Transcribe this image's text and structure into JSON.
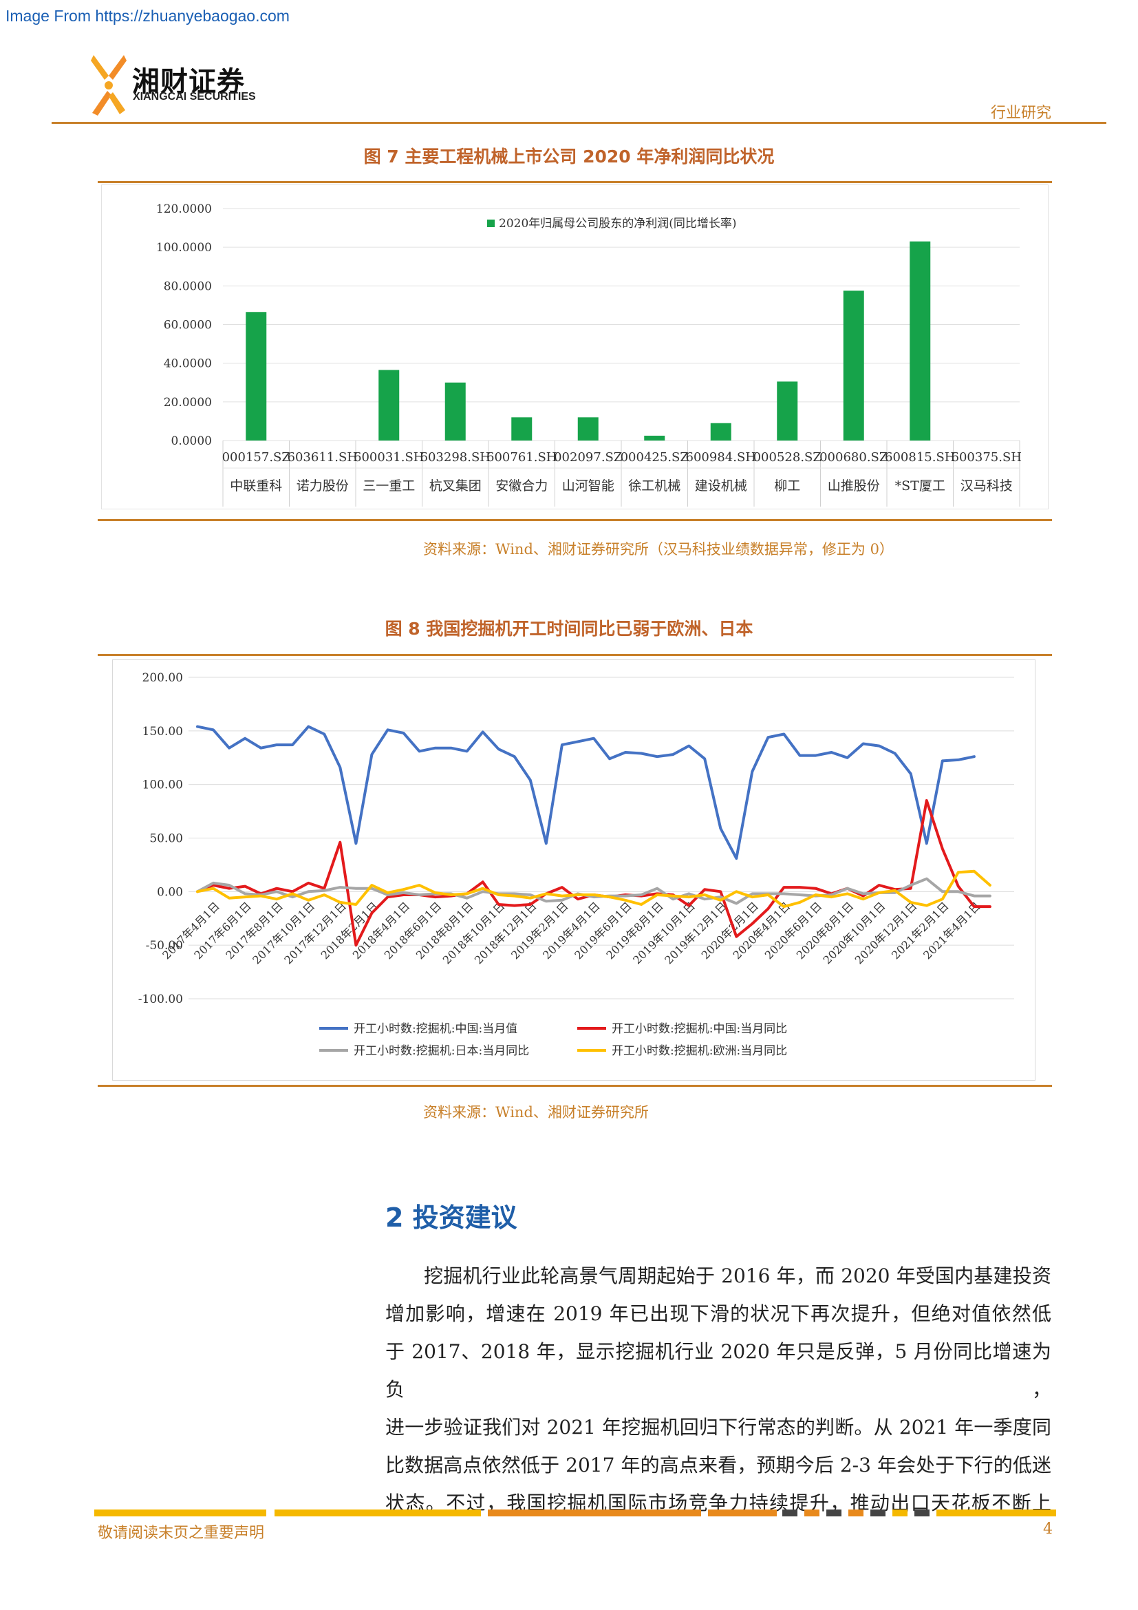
{
  "source_url": "Image From https://zhuanyebaogao.com",
  "brand": {
    "name_cn": "湘财证券",
    "name_en": "XIANGCAI SECURITIES"
  },
  "header": {
    "tag": "行业研究"
  },
  "colors": {
    "accent": "#c8802a",
    "bar": "#16a34a",
    "china_value": "#4472c4",
    "china_yoy": "#e31a1c",
    "japan_yoy": "#a6a6a6",
    "europe_yoy": "#ffc000",
    "heading": "#1f5ea8"
  },
  "figure7": {
    "title": "图 7 主要工程机械上市公司 2020 年净利润同比状况",
    "source": "资料来源：Wind、湘财证券研究所（汉马科技业绩数据异常，修正为 0）",
    "chart_data": {
      "type": "bar",
      "legend": "2020年归属母公司股东的净利润(同比增长率)",
      "legend_placement": "top",
      "grid": true,
      "ylim": [
        0,
        120
      ],
      "yticks": [
        "0.0000",
        "20.0000",
        "40.0000",
        "60.0000",
        "80.0000",
        "100.0000",
        "120.0000"
      ],
      "codes": [
        "000157.SZ",
        "603611.SH",
        "600031.SH",
        "603298.SH",
        "600761.SH",
        "002097.SZ",
        "000425.SZ",
        "600984.SH",
        "000528.SZ",
        "000680.SZ",
        "600815.SH",
        "600375.SH"
      ],
      "categories": [
        "中联重科",
        "诺力股份",
        "三一重工",
        "杭叉集团",
        "安徽合力",
        "山河智能",
        "徐工机械",
        "建设机械",
        "柳工",
        "山推股份",
        "*ST厦工",
        "汉马科技"
      ],
      "values": [
        66.5,
        0,
        36.5,
        30,
        12,
        12,
        2.5,
        9,
        30.5,
        77.5,
        103,
        0
      ]
    }
  },
  "figure8": {
    "title": "图 8 我国挖掘机开工时间同比已弱于欧洲、日本",
    "source": "资料来源：Wind、湘财证券研究所",
    "chart_data": {
      "type": "line",
      "ylim": [
        -100,
        200
      ],
      "yticks": [
        "-100.00",
        "-50.00",
        "0.00",
        "50.00",
        "100.00",
        "150.00",
        "200.00"
      ],
      "grid": true,
      "legend_placement": "bottom",
      "x": [
        "2017-03",
        "2017-04",
        "2017-05",
        "2017-06",
        "2017-07",
        "2017-08",
        "2017-09",
        "2017-10",
        "2017-11",
        "2017-12",
        "2018-01",
        "2018-02",
        "2018-03",
        "2018-04",
        "2018-05",
        "2018-06",
        "2018-07",
        "2018-08",
        "2018-09",
        "2018-10",
        "2018-11",
        "2018-12",
        "2019-01",
        "2019-02",
        "2019-03",
        "2019-04",
        "2019-05",
        "2019-06",
        "2019-07",
        "2019-08",
        "2019-09",
        "2019-10",
        "2019-11",
        "2019-12",
        "2020-01",
        "2020-02",
        "2020-03",
        "2020-04",
        "2020-05",
        "2020-06",
        "2020-07",
        "2020-08",
        "2020-09",
        "2020-10",
        "2020-11",
        "2020-12",
        "2021-01",
        "2021-02",
        "2021-03",
        "2021-04",
        "2021-05",
        "2021-06"
      ],
      "xtick_labels": [
        "2017年4月1日",
        "2017年6月1日",
        "2017年8月1日",
        "2017年10月1日",
        "2017年12月1日",
        "2018年2月1日",
        "2018年4月1日",
        "2018年6月1日",
        "2018年8月1日",
        "2018年10月1日",
        "2018年12月1日",
        "2019年2月1日",
        "2019年4月1日",
        "2019年6月1日",
        "2019年8月1日",
        "2019年10月1日",
        "2019年12月1日",
        "2020年2月1日",
        "2020年4月1日",
        "2020年6月1日",
        "2020年8月1日",
        "2020年10月1日",
        "2020年12月1日",
        "2021年2月1日",
        "2021年4月1日"
      ],
      "series": [
        {
          "name": "开工小时数:挖掘机:中国:当月值",
          "color": "#4472c4",
          "values": [
            154,
            151,
            134,
            143,
            134,
            137,
            137,
            154,
            147,
            116,
            45,
            128,
            151,
            148,
            131,
            134,
            134,
            131,
            149,
            133,
            126,
            104,
            45,
            137,
            140,
            143,
            124,
            130,
            129,
            126,
            128,
            136,
            124,
            59,
            31,
            112,
            144,
            147,
            127,
            127,
            130,
            125,
            138,
            136,
            129,
            110,
            45,
            122,
            123,
            126,
            null,
            null
          ]
        },
        {
          "name": "开工小时数:挖掘机:中国:当月同比",
          "color": "#e31a1c",
          "values": [
            0,
            6,
            3,
            5,
            -2,
            3,
            0,
            8,
            3,
            46,
            -50,
            -20,
            -5,
            -3,
            -3,
            -5,
            -4,
            -2,
            9,
            -12,
            -13,
            -12,
            -2,
            4,
            -7,
            -3,
            -5,
            -3,
            -4,
            -2,
            -3,
            -13,
            2,
            0,
            -42,
            -30,
            -16,
            4,
            4,
            3,
            -2,
            3,
            -4,
            6,
            2,
            3,
            85,
            40,
            5,
            -14,
            -14,
            null
          ]
        },
        {
          "name": "开工小时数:挖掘机:日本:当月同比",
          "color": "#a6a6a6",
          "values": [
            0,
            8,
            6,
            -2,
            -3,
            0,
            -5,
            0,
            1,
            4,
            3,
            3,
            -3,
            -1,
            -3,
            -2,
            -2,
            -6,
            0,
            -2,
            -2,
            -3,
            -9,
            -8,
            -2,
            -5,
            -4,
            -4,
            -3,
            3,
            -7,
            -2,
            -7,
            -5,
            -11,
            -2,
            -2,
            -2,
            -3,
            -4,
            -3,
            3,
            -2,
            -1,
            -1,
            6,
            12,
            0,
            0,
            -4,
            -4,
            null
          ]
        },
        {
          "name": "开工小时数:挖掘机:欧洲:当月同比",
          "color": "#ffc000",
          "values": [
            0,
            3,
            -6,
            -5,
            -4,
            -7,
            -2,
            -8,
            -3,
            -10,
            -12,
            6,
            -1,
            2,
            6,
            -1,
            -3,
            -2,
            3,
            -3,
            -4,
            -6,
            -2,
            -4,
            -3,
            -3,
            -5,
            -8,
            -12,
            -3,
            -4,
            -5,
            -3,
            -8,
            0,
            -5,
            -3,
            -14,
            -10,
            -3,
            -5,
            -2,
            -7,
            -1,
            1,
            -10,
            -13,
            -7,
            18,
            19,
            6,
            null
          ]
        }
      ]
    }
  },
  "section": {
    "heading": "2 投资建议",
    "lines": [
      "挖掘机行业此轮高景气周期起始于 2016 年，而 2020 年受国内基建投资",
      "增加影响，增速在 2019 年已出现下滑的状况下再次提升，但绝对值依然低",
      "于 2017、2018 年，显示挖掘机行业 2020 年只是反弹，5 月份同比增速为负，",
      "进一步验证我们对 2021 年挖掘机回归下行常态的判断。从 2021 年一季度同",
      "比数据高点依然低于 2017 年的高点来看，预期今后 2-3 年会处于下行的低迷",
      "状态。不过，我国挖掘机国际市场竞争力持续提升，推动出口天花板不断上"
    ]
  },
  "footer": {
    "notice": "敬请阅读末页之重要声明",
    "page": "4"
  }
}
